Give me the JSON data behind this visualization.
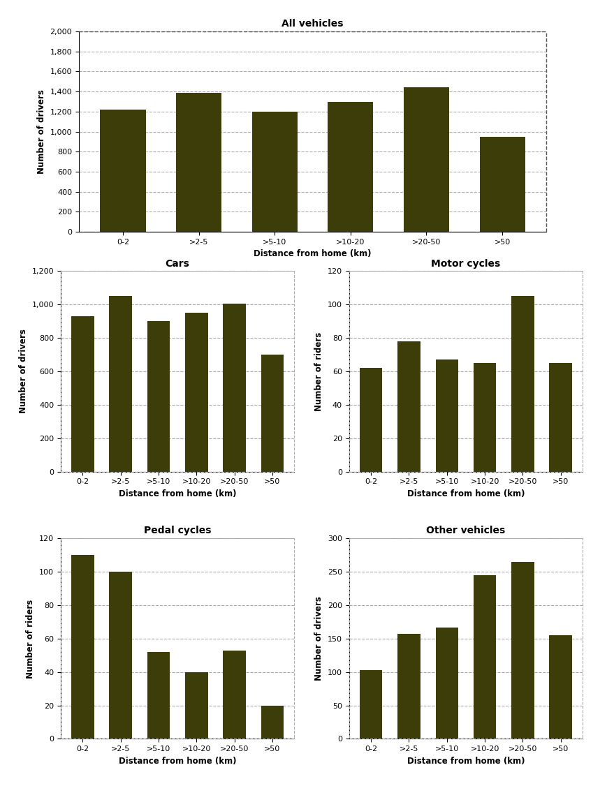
{
  "categories": [
    "0-2",
    ">2-5",
    ">5-10",
    ">10-20",
    ">20-50",
    ">50"
  ],
  "all_vehicles": [
    1220,
    1390,
    1200,
    1300,
    1440,
    950
  ],
  "cars": [
    930,
    1050,
    900,
    950,
    1005,
    700
  ],
  "motor_cycles": [
    62,
    78,
    67,
    65,
    105,
    65
  ],
  "pedal_cycles": [
    110,
    100,
    52,
    40,
    53,
    20
  ],
  "other_vehicles": [
    103,
    157,
    167,
    245,
    265,
    155
  ],
  "bar_color": "#3d3d0a",
  "titles": [
    "All vehicles",
    "Cars",
    "Motor cycles",
    "Pedal cycles",
    "Other vehicles"
  ],
  "ylabels": {
    "all_vehicles": "Number of drivers",
    "cars": "Number of drivers",
    "motor_cycles": "Number of riders",
    "pedal_cycles": "Number of riders",
    "other_vehicles": "Number of drivers"
  },
  "xlabel": "Distance from home (km)",
  "all_ylim": [
    0,
    2000
  ],
  "cars_ylim": [
    0,
    1200
  ],
  "motor_cycles_ylim": [
    0,
    120
  ],
  "pedal_cycles_ylim": [
    0,
    120
  ],
  "other_vehicles_ylim": [
    0,
    300
  ],
  "all_yticks": [
    0,
    200,
    400,
    600,
    800,
    1000,
    1200,
    1400,
    1600,
    1800,
    2000
  ],
  "cars_yticks": [
    0,
    200,
    400,
    600,
    800,
    1000,
    1200
  ],
  "motor_cycles_yticks": [
    0,
    20,
    40,
    60,
    80,
    100,
    120
  ],
  "pedal_cycles_yticks": [
    0,
    20,
    40,
    60,
    80,
    100,
    120
  ],
  "other_vehicles_yticks": [
    0,
    50,
    100,
    150,
    200,
    250,
    300
  ],
  "background_color": "#ffffff",
  "grid_color": "#aaaaaa"
}
